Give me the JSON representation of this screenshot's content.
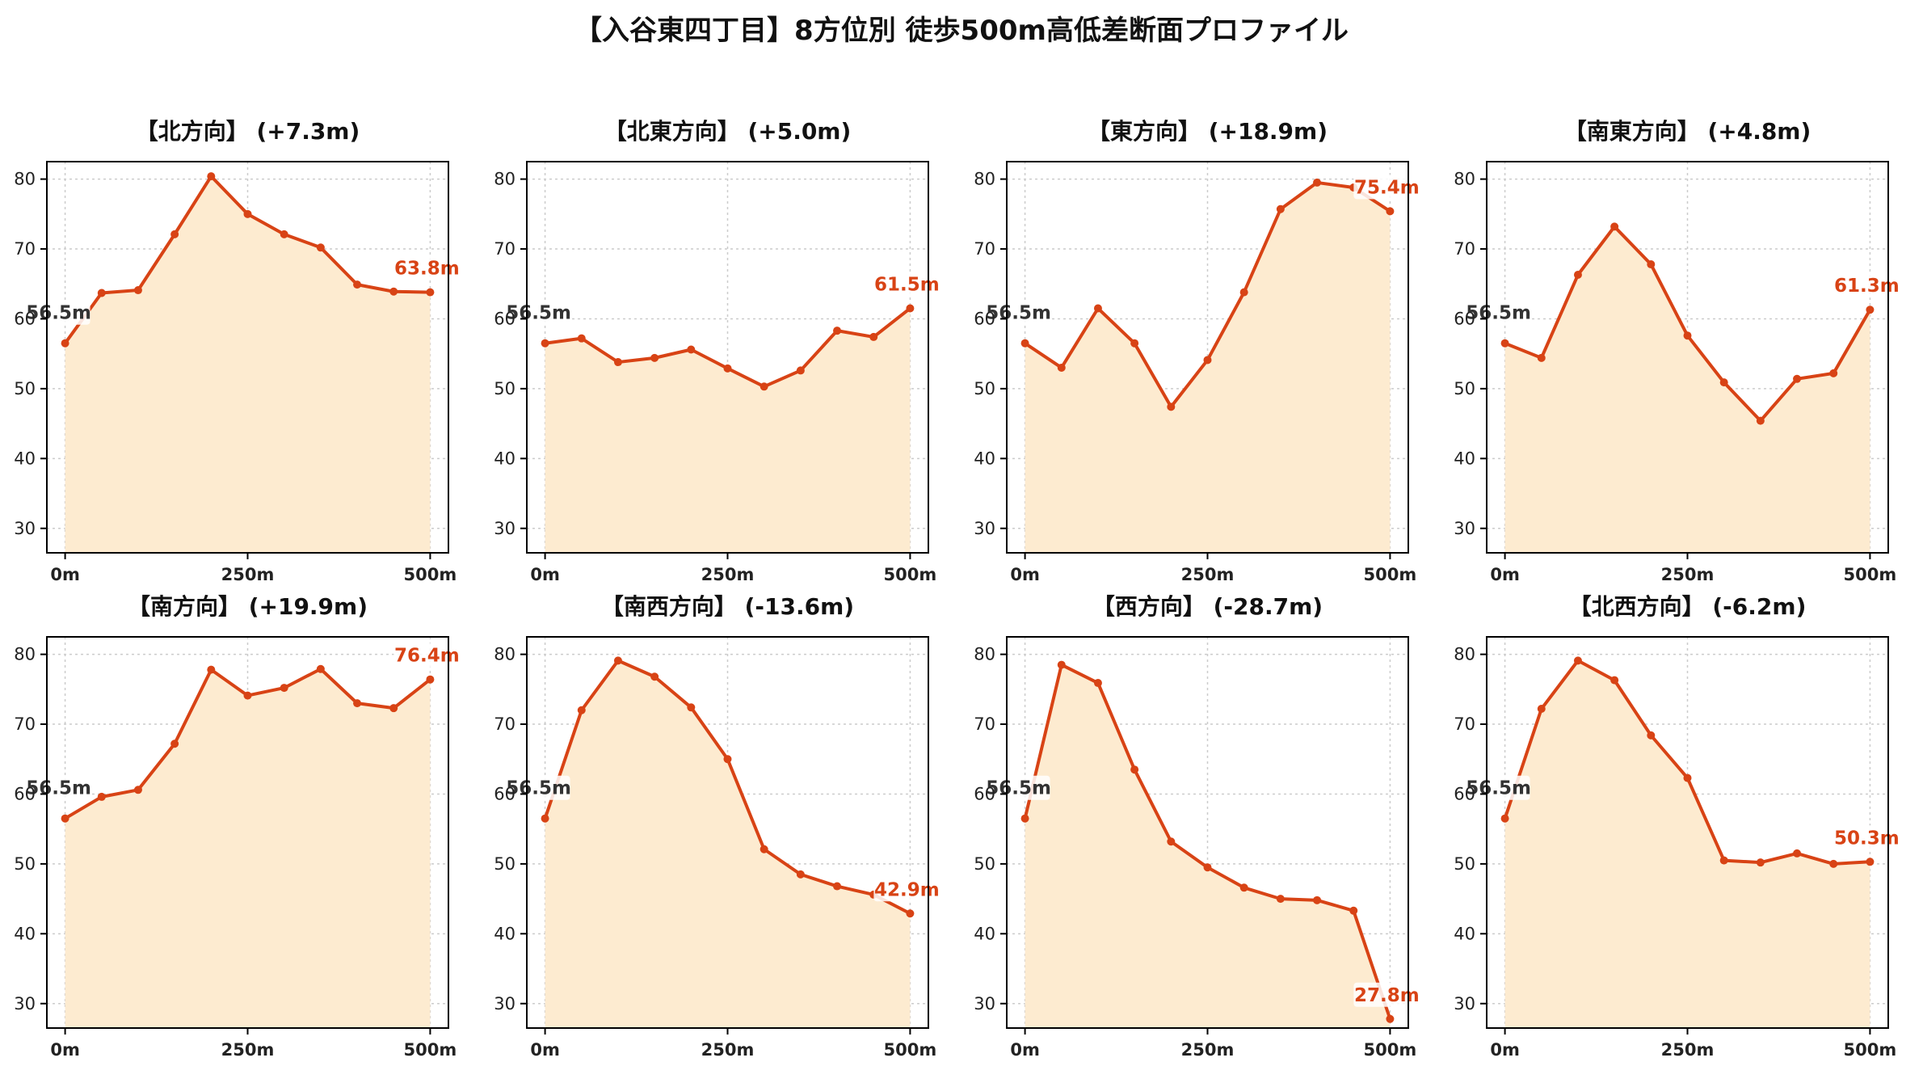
{
  "title": "【入谷東四丁目】8方位別 徒歩500m高低差断面プロファイル",
  "colors": {
    "line": "#d84315",
    "fill": "#fdebd0",
    "start_label": "#333333",
    "end_label": "#d84315",
    "grid": "#cccccc"
  },
  "chart_data": [
    {
      "type": "area",
      "title": "【北方向】 (+7.3m)",
      "x": [
        0,
        50,
        100,
        150,
        200,
        250,
        300,
        350,
        400,
        450,
        500
      ],
      "values": [
        56.5,
        63.7,
        64.1,
        72.1,
        80.4,
        75.0,
        72.1,
        70.2,
        64.9,
        63.9,
        63.8
      ],
      "xticks": [
        "0m",
        "250m",
        "500m"
      ],
      "yticks": [
        30,
        40,
        50,
        60,
        70,
        80
      ],
      "ylim": [
        26.5,
        82.5
      ],
      "start_label": "56.5m",
      "end_label": "63.8m",
      "grid": true
    },
    {
      "type": "area",
      "title": "【北東方向】 (+5.0m)",
      "x": [
        0,
        50,
        100,
        150,
        200,
        250,
        300,
        350,
        400,
        450,
        500
      ],
      "values": [
        56.5,
        57.2,
        53.8,
        54.4,
        55.6,
        52.9,
        50.3,
        52.6,
        58.3,
        57.4,
        61.5
      ],
      "xticks": [
        "0m",
        "250m",
        "500m"
      ],
      "yticks": [
        30,
        40,
        50,
        60,
        70,
        80
      ],
      "ylim": [
        26.5,
        82.5
      ],
      "start_label": "56.5m",
      "end_label": "61.5m",
      "grid": true
    },
    {
      "type": "area",
      "title": "【東方向】 (+18.9m)",
      "x": [
        0,
        50,
        100,
        150,
        200,
        250,
        300,
        350,
        400,
        450,
        500
      ],
      "values": [
        56.5,
        53.0,
        61.5,
        56.5,
        47.4,
        54.1,
        63.8,
        75.7,
        79.5,
        78.8,
        75.4
      ],
      "xticks": [
        "0m",
        "250m",
        "500m"
      ],
      "yticks": [
        30,
        40,
        50,
        60,
        70,
        80
      ],
      "ylim": [
        26.5,
        82.5
      ],
      "start_label": "56.5m",
      "end_label": "75.4m",
      "grid": true
    },
    {
      "type": "area",
      "title": "【南東方向】 (+4.8m)",
      "x": [
        0,
        50,
        100,
        150,
        200,
        250,
        300,
        350,
        400,
        450,
        500
      ],
      "values": [
        56.5,
        54.4,
        66.3,
        73.2,
        67.8,
        57.6,
        50.9,
        45.4,
        51.4,
        52.2,
        61.3
      ],
      "xticks": [
        "0m",
        "250m",
        "500m"
      ],
      "yticks": [
        30,
        40,
        50,
        60,
        70,
        80
      ],
      "ylim": [
        26.5,
        82.5
      ],
      "start_label": "56.5m",
      "end_label": "61.3m",
      "grid": true
    },
    {
      "type": "area",
      "title": "【南方向】 (+19.9m)",
      "x": [
        0,
        50,
        100,
        150,
        200,
        250,
        300,
        350,
        400,
        450,
        500
      ],
      "values": [
        56.5,
        59.6,
        60.6,
        67.2,
        77.8,
        74.1,
        75.2,
        77.9,
        73.0,
        72.3,
        76.4
      ],
      "xticks": [
        "0m",
        "250m",
        "500m"
      ],
      "yticks": [
        30,
        40,
        50,
        60,
        70,
        80
      ],
      "ylim": [
        26.5,
        82.5
      ],
      "start_label": "56.5m",
      "end_label": "76.4m",
      "grid": true
    },
    {
      "type": "area",
      "title": "【南西方向】 (-13.6m)",
      "x": [
        0,
        50,
        100,
        150,
        200,
        250,
        300,
        350,
        400,
        450,
        500
      ],
      "values": [
        56.5,
        72.0,
        79.1,
        76.8,
        72.4,
        65.0,
        52.1,
        48.5,
        46.8,
        45.6,
        42.9
      ],
      "xticks": [
        "0m",
        "250m",
        "500m"
      ],
      "yticks": [
        30,
        40,
        50,
        60,
        70,
        80
      ],
      "ylim": [
        26.5,
        82.5
      ],
      "start_label": "56.5m",
      "end_label": "42.9m",
      "grid": true
    },
    {
      "type": "area",
      "title": "【西方向】 (-28.7m)",
      "x": [
        0,
        50,
        100,
        150,
        200,
        250,
        300,
        350,
        400,
        450,
        500
      ],
      "values": [
        56.5,
        78.5,
        75.9,
        63.5,
        53.2,
        49.5,
        46.6,
        45.0,
        44.8,
        43.3,
        27.8
      ],
      "xticks": [
        "0m",
        "250m",
        "500m"
      ],
      "yticks": [
        30,
        40,
        50,
        60,
        70,
        80
      ],
      "ylim": [
        26.5,
        82.5
      ],
      "start_label": "56.5m",
      "end_label": "27.8m",
      "grid": true
    },
    {
      "type": "area",
      "title": "【北西方向】 (-6.2m)",
      "x": [
        0,
        50,
        100,
        150,
        200,
        250,
        300,
        350,
        400,
        450,
        500
      ],
      "values": [
        56.5,
        72.2,
        79.1,
        76.3,
        68.4,
        62.3,
        50.5,
        50.2,
        51.5,
        50.0,
        50.3
      ],
      "xticks": [
        "0m",
        "250m",
        "500m"
      ],
      "yticks": [
        30,
        40,
        50,
        60,
        70,
        80
      ],
      "ylim": [
        26.5,
        82.5
      ],
      "start_label": "56.5m",
      "end_label": "50.3m",
      "grid": true
    }
  ]
}
